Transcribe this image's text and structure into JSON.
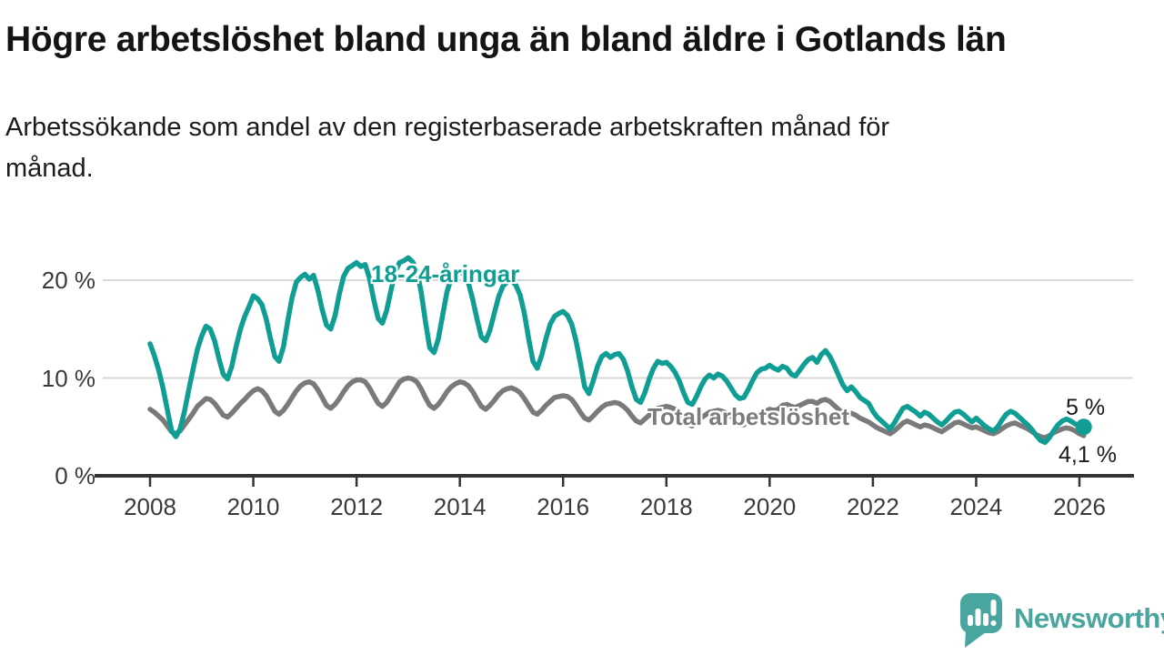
{
  "header": {
    "title": "Högre arbetslöshet bland unga än bland äldre i Gotlands län",
    "subtitle": "Arbetssökande som andel av den registerbaserade arbetskraften månad för månad."
  },
  "chart_data": {
    "type": "line",
    "title": "Högre arbetslöshet bland unga än bland äldre i Gotlands län",
    "subtitle": "Arbetssökande som andel av den registerbaserade arbetskraften månad för månad.",
    "x_unit": "month",
    "x_start_year": 2008,
    "x_end_label": "2026",
    "x_ticks": [
      2008,
      2010,
      2012,
      2014,
      2016,
      2018,
      2020,
      2022,
      2024,
      2026
    ],
    "y_ticks": [
      {
        "value": 0,
        "label": "0 %"
      },
      {
        "value": 10,
        "label": "10 %"
      },
      {
        "value": 20,
        "label": "20 %"
      }
    ],
    "ylim": [
      0,
      23.5
    ],
    "grid": "horizontal-above-zero",
    "legend_position": "inline-annotations",
    "series": [
      {
        "name": "18-24-åringar",
        "color": "#109E94",
        "end_label": "5 %",
        "end_value": 5.0,
        "end_dot": true,
        "values": [
          13.5,
          12.3,
          10.8,
          9.0,
          6.8,
          4.6,
          4.0,
          4.8,
          6.6,
          8.8,
          10.9,
          12.9,
          14.3,
          15.3,
          15.0,
          13.8,
          12.0,
          10.4,
          9.9,
          11.2,
          13.2,
          15.0,
          16.3,
          17.3,
          18.4,
          18.1,
          17.5,
          16.0,
          14.0,
          12.2,
          11.7,
          13.2,
          15.8,
          18.2,
          19.8,
          20.3,
          20.6,
          20.1,
          20.5,
          19.0,
          17.0,
          15.4,
          15.0,
          16.4,
          18.6,
          20.4,
          21.2,
          21.5,
          21.8,
          21.4,
          21.6,
          20.2,
          18.0,
          16.1,
          15.6,
          16.9,
          19.0,
          20.9,
          21.8,
          22.0,
          22.3,
          21.9,
          21.0,
          18.8,
          15.8,
          13.1,
          12.6,
          14.0,
          16.4,
          18.8,
          20.2,
          20.7,
          21.0,
          20.5,
          19.7,
          18.0,
          16.0,
          14.2,
          13.8,
          14.9,
          16.6,
          18.3,
          19.4,
          19.8,
          20.0,
          19.5,
          18.5,
          16.6,
          14.0,
          11.7,
          11.0,
          12.3,
          14.0,
          15.5,
          16.3,
          16.6,
          16.8,
          16.4,
          15.5,
          13.8,
          11.6,
          9.1,
          8.4,
          9.7,
          11.2,
          12.2,
          12.5,
          12.1,
          12.4,
          12.5,
          11.9,
          10.7,
          9.1,
          7.8,
          7.5,
          8.5,
          9.9,
          11.0,
          11.7,
          11.5,
          11.6,
          11.2,
          10.6,
          9.7,
          8.5,
          7.5,
          7.3,
          8.1,
          9.1,
          9.9,
          10.3,
          10.0,
          10.4,
          10.2,
          9.7,
          9.0,
          8.3,
          7.9,
          8.0,
          8.8,
          9.7,
          10.5,
          10.9,
          11.0,
          11.3,
          11.0,
          10.8,
          11.2,
          11.0,
          10.4,
          10.2,
          10.8,
          11.4,
          11.9,
          12.1,
          11.6,
          12.4,
          12.8,
          12.2,
          11.3,
          10.3,
          9.3,
          8.7,
          9.1,
          8.6,
          8.0,
          7.7,
          7.4,
          6.6,
          6.0,
          5.6,
          5.2,
          4.8,
          5.4,
          6.2,
          6.9,
          7.1,
          6.8,
          6.5,
          6.1,
          6.5,
          6.3,
          5.9,
          5.5,
          5.2,
          5.6,
          6.1,
          6.5,
          6.6,
          6.3,
          5.9,
          5.5,
          5.9,
          5.5,
          5.1,
          4.8,
          4.6,
          5.0,
          5.7,
          6.3,
          6.6,
          6.4,
          6.0,
          5.6,
          5.2,
          4.7,
          4.1,
          3.6,
          3.4,
          3.9,
          4.6,
          5.2,
          5.6,
          5.8,
          5.6,
          5.3,
          5.1,
          5.0
        ]
      },
      {
        "name": "Total arbetslöshet",
        "color": "#7A7A7A",
        "end_label": "4,1 %",
        "end_value": 4.1,
        "end_dot": false,
        "values": [
          6.8,
          6.5,
          6.1,
          5.7,
          5.1,
          4.5,
          4.3,
          4.6,
          5.2,
          5.8,
          6.4,
          7.1,
          7.5,
          7.9,
          7.8,
          7.4,
          6.8,
          6.2,
          6.0,
          6.4,
          6.9,
          7.4,
          7.8,
          8.3,
          8.7,
          8.9,
          8.7,
          8.2,
          7.4,
          6.6,
          6.3,
          6.7,
          7.3,
          8.0,
          8.7,
          9.2,
          9.5,
          9.6,
          9.4,
          8.8,
          8.0,
          7.2,
          6.9,
          7.3,
          7.9,
          8.6,
          9.2,
          9.6,
          9.8,
          9.8,
          9.6,
          9.0,
          8.2,
          7.4,
          7.1,
          7.5,
          8.2,
          8.9,
          9.6,
          9.9,
          10.0,
          9.9,
          9.6,
          8.9,
          8.0,
          7.2,
          6.9,
          7.3,
          7.9,
          8.6,
          9.1,
          9.4,
          9.6,
          9.5,
          9.2,
          8.6,
          7.8,
          7.1,
          6.8,
          7.2,
          7.7,
          8.3,
          8.7,
          8.9,
          9.0,
          8.8,
          8.5,
          7.9,
          7.2,
          6.5,
          6.3,
          6.7,
          7.2,
          7.6,
          8.0,
          8.1,
          8.2,
          8.1,
          7.8,
          7.2,
          6.5,
          5.9,
          5.7,
          6.1,
          6.6,
          7.0,
          7.3,
          7.4,
          7.5,
          7.4,
          7.1,
          6.7,
          6.1,
          5.6,
          5.4,
          5.8,
          6.2,
          6.6,
          6.9,
          7.0,
          7.1,
          7.0,
          6.8,
          6.4,
          5.8,
          5.3,
          5.1,
          5.5,
          5.9,
          6.2,
          6.5,
          6.6,
          6.7,
          6.6,
          6.4,
          6.1,
          5.7,
          5.3,
          5.2,
          5.6,
          6.0,
          6.3,
          6.5,
          6.6,
          6.8,
          6.7,
          6.8,
          7.2,
          7.3,
          7.1,
          7.0,
          7.2,
          7.4,
          7.6,
          7.6,
          7.4,
          7.7,
          7.8,
          7.6,
          7.2,
          6.8,
          6.4,
          6.2,
          6.4,
          6.2,
          5.9,
          5.7,
          5.5,
          5.2,
          4.9,
          4.7,
          4.5,
          4.3,
          4.6,
          5.0,
          5.4,
          5.6,
          5.4,
          5.2,
          5.0,
          5.2,
          5.1,
          4.9,
          4.7,
          4.5,
          4.8,
          5.1,
          5.4,
          5.5,
          5.3,
          5.1,
          4.9,
          5.0,
          4.8,
          4.6,
          4.4,
          4.3,
          4.5,
          4.8,
          5.1,
          5.3,
          5.4,
          5.2,
          5.0,
          4.8,
          4.5,
          4.2,
          4.0,
          3.9,
          4.1,
          4.4,
          4.6,
          4.8,
          4.9,
          4.8,
          4.6,
          4.3,
          4.1
        ]
      }
    ]
  },
  "colors": {
    "accent_teal": "#109E94",
    "series_gray": "#7A7A7A",
    "grid": "#D8D8D8",
    "axis": "#333333",
    "tick_text": "#3A3A3A",
    "brand_teal": "#48A69E"
  },
  "footer": {
    "brand": "Newsworthy"
  }
}
